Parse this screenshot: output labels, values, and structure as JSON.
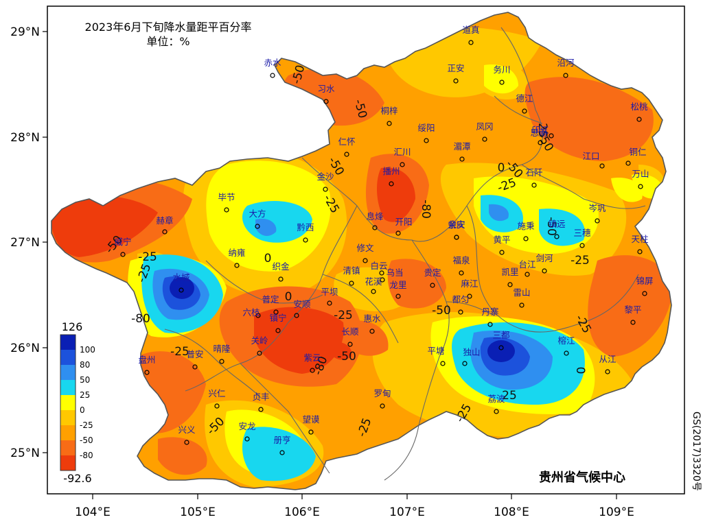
{
  "map": {
    "title": "2023年6月下旬降水量距平百分率",
    "unit": "单位：%",
    "credit": "贵州省气候中心",
    "approval_no": "GS(2017)3320号",
    "lon_ticks": [
      "104°E",
      "105°E",
      "106°E",
      "107°E",
      "108°E",
      "109°E"
    ],
    "lat_ticks": [
      "29°N",
      "28°N",
      "27°N",
      "26°N",
      "25°N"
    ]
  },
  "legend": {
    "max_label": "126",
    "min_label": "-92.6",
    "classes": [
      {
        "label": "100",
        "color": "#0a1fb4"
      },
      {
        "label": "80",
        "color": "#1c52dc"
      },
      {
        "label": "50",
        "color": "#2f8ff0"
      },
      {
        "label": "25",
        "color": "#18d7ef"
      },
      {
        "label": "0",
        "color": "#ffff00"
      },
      {
        "label": "-25",
        "color": "#ffc800"
      },
      {
        "label": "-50",
        "color": "#ffa000"
      },
      {
        "label": "-80",
        "color": "#f86c16"
      },
      {
        "label": "",
        "color": "#ee3c0c"
      }
    ]
  },
  "contour_labels": [
    "-50",
    "-50",
    "-50",
    "-25",
    "-25",
    "-50",
    "-80",
    "-50",
    "-50",
    "-25",
    "0",
    "-25",
    "0",
    "-25",
    "-50",
    "-80",
    "-25",
    "-50",
    "-80",
    "-50",
    "-25",
    "25",
    "0",
    "-25",
    "25",
    "0",
    "-25",
    "-50",
    "-25"
  ],
  "cities": [
    "赤水",
    "习水",
    "道真",
    "正安",
    "务川",
    "沿河",
    "桐梓",
    "德江",
    "松桃",
    "绥阳",
    "凤冈",
    "印江",
    "思南",
    "仁怀",
    "汇川",
    "湄潭",
    "江口",
    "铜仁",
    "石阡",
    "金沙",
    "播州",
    "万山",
    "毕节",
    "大方",
    "息烽",
    "开阳",
    "余庆",
    "岑巩",
    "赫章",
    "黔西",
    "瓮安",
    "镇远",
    "施秉",
    "黄平",
    "三穗",
    "天柱",
    "威宁",
    "纳雍",
    "修文",
    "织金",
    "白云",
    "乌当",
    "福泉",
    "剑河",
    "台江",
    "水城",
    "清镇",
    "花溪",
    "龙里",
    "贵定",
    "麻江",
    "凯里",
    "锦屏",
    "平坝",
    "雷山",
    "六枝",
    "普定",
    "安顺",
    "惠水",
    "都匀",
    "丹寨",
    "黎平",
    "镇宁",
    "长顺",
    "三都",
    "关岭",
    "紫云",
    "平塘",
    "独山",
    "榕江",
    "盘州",
    "普安",
    "晴隆",
    "从江",
    "兴仁",
    "贞丰",
    "罗甸",
    "荔波",
    "兴义",
    "安龙",
    "望谟",
    "册亨"
  ]
}
